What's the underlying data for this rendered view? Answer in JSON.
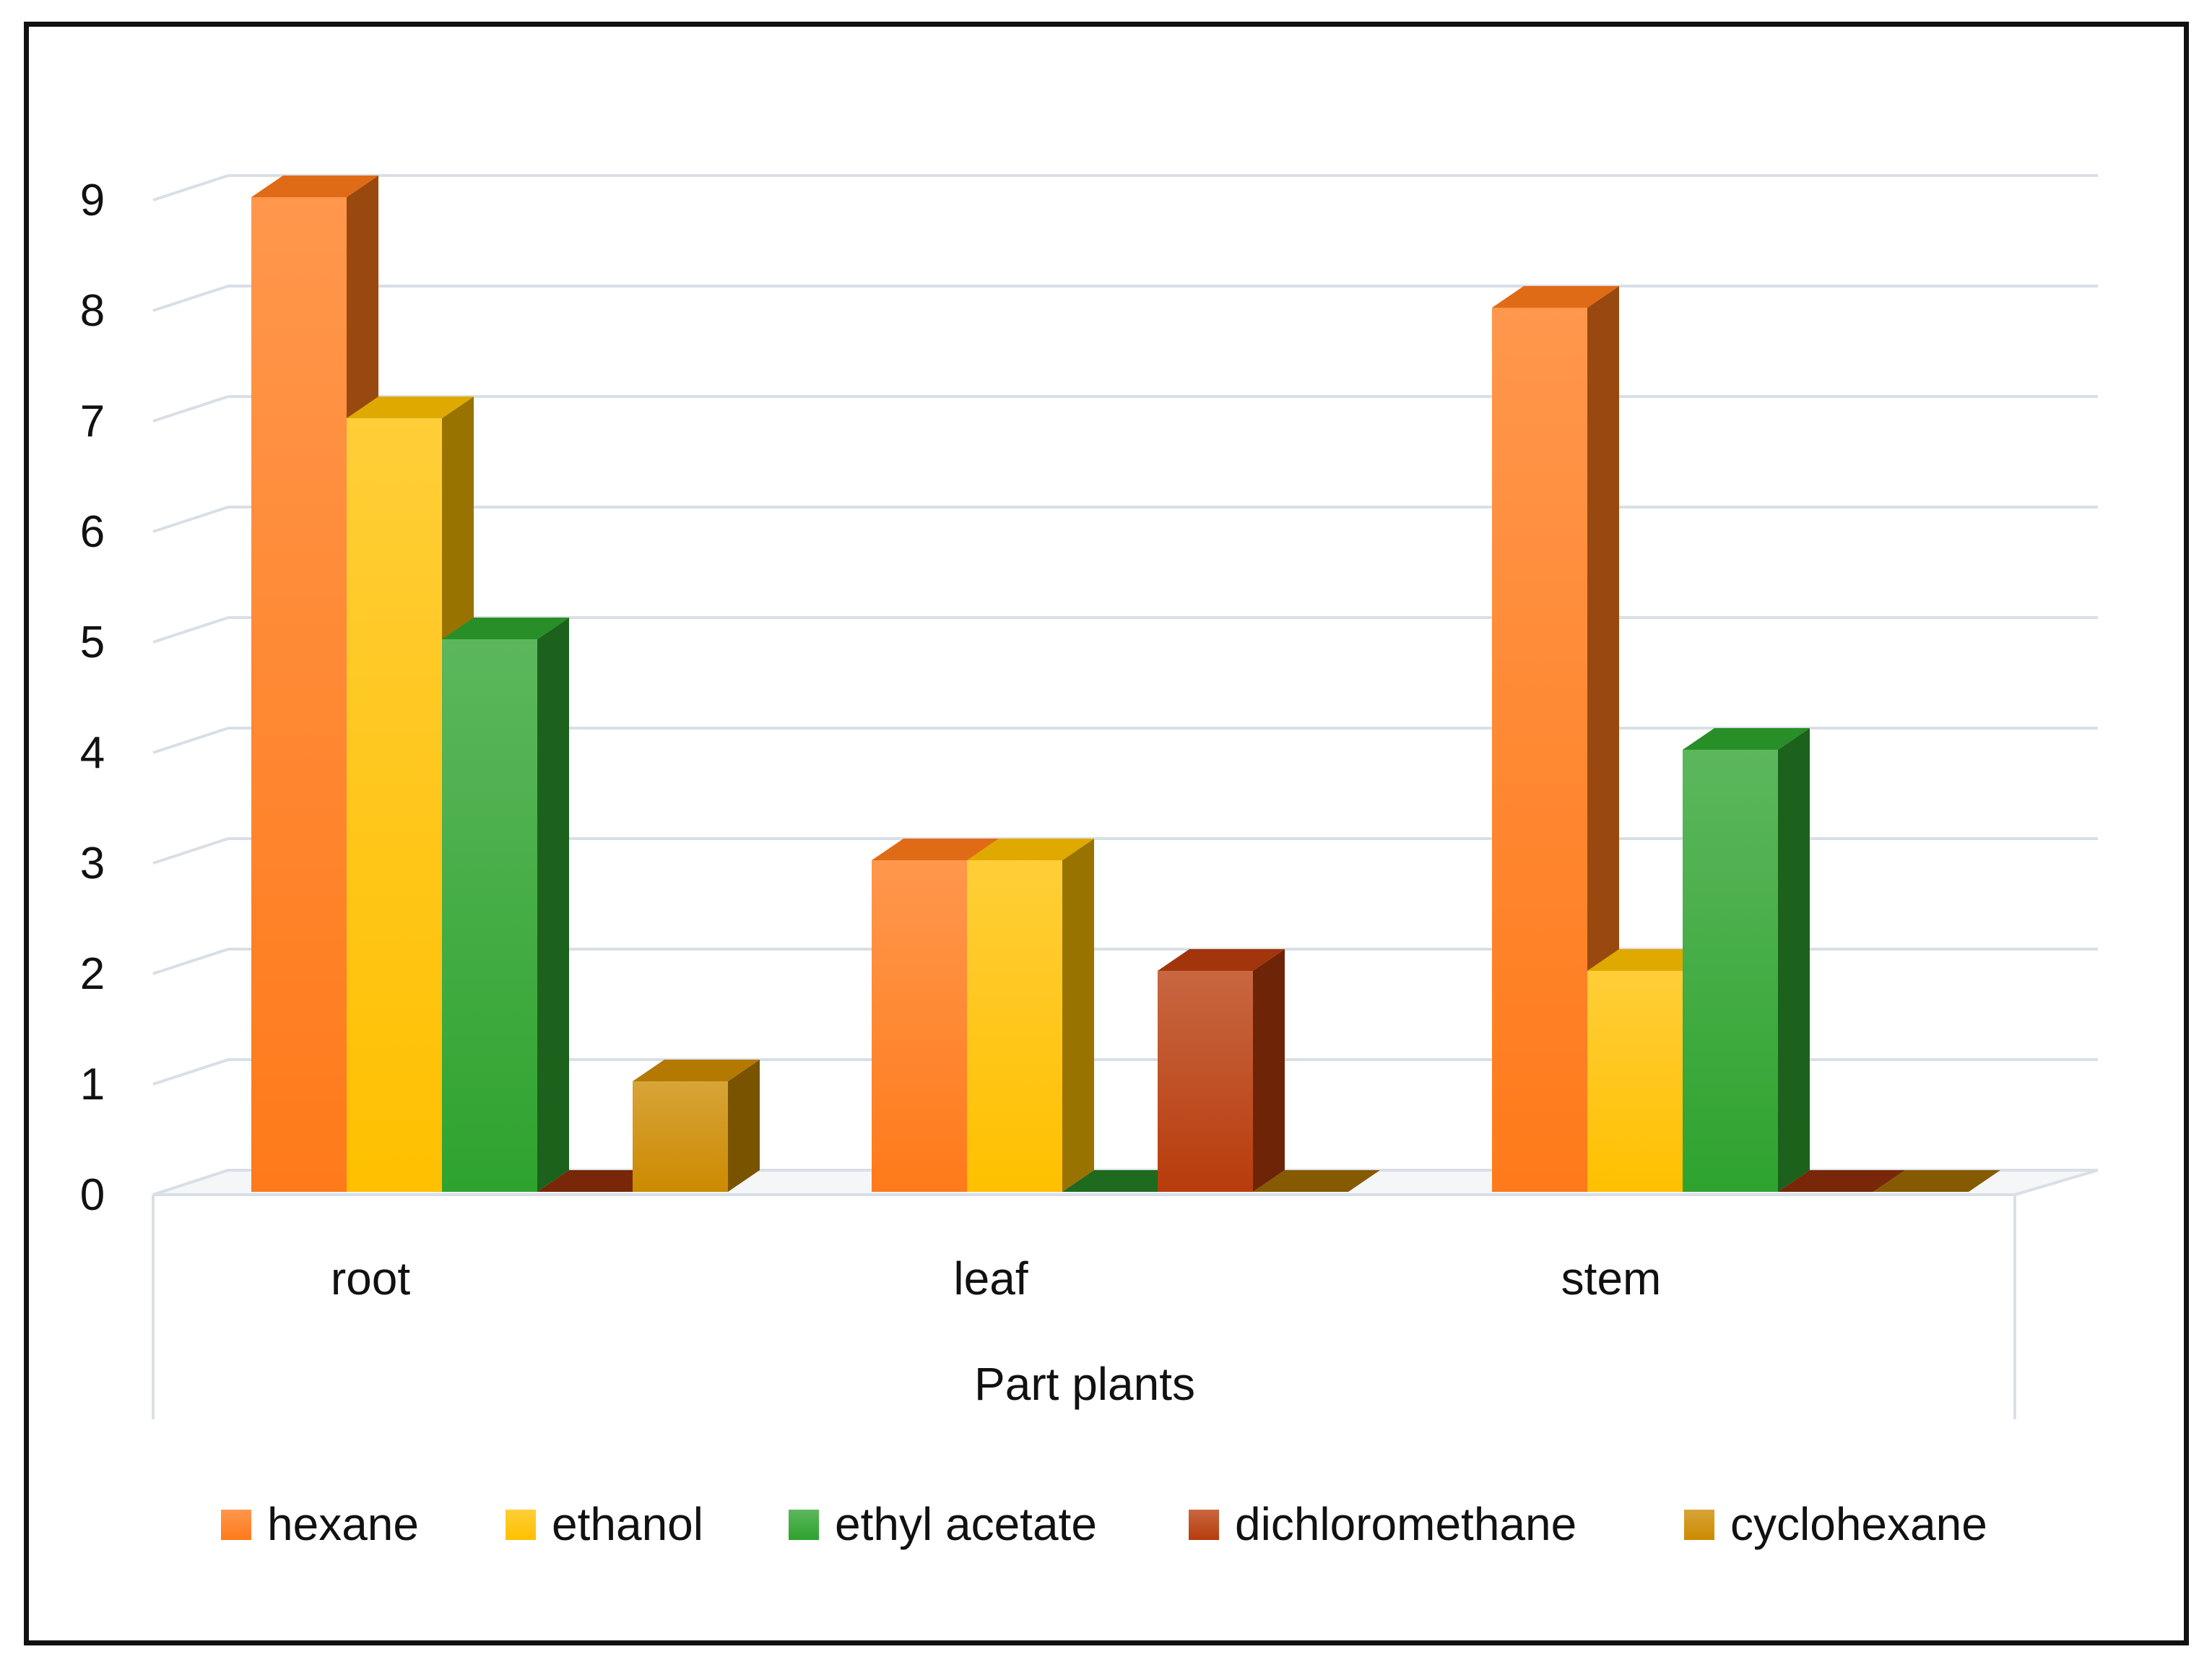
{
  "chart_data": {
    "type": "bar",
    "style": "3d-clustered-column",
    "categories": [
      "root",
      "leaf",
      "stem"
    ],
    "series": [
      {
        "name": "hexane",
        "values": [
          9,
          3,
          8
        ],
        "color": "#FF7A1A"
      },
      {
        "name": "ethanol",
        "values": [
          7,
          3,
          2
        ],
        "color": "#FFC000"
      },
      {
        "name": "ethyl acetate",
        "values": [
          5,
          0,
          4
        ],
        "color": "#2EA32E"
      },
      {
        "name": "dichloromethane",
        "values": [
          0,
          2,
          0
        ],
        "color": "#B83C0C"
      },
      {
        "name": "cyclohexane",
        "values": [
          1,
          0,
          0
        ],
        "color": "#CC8A00"
      }
    ],
    "title": "",
    "xlabel": "Part plants",
    "ylabel": "",
    "ylim": [
      0,
      9
    ],
    "yticks": [
      0,
      1,
      2,
      3,
      4,
      5,
      6,
      7,
      8,
      9
    ],
    "grid": true,
    "legend_position": "bottom"
  }
}
